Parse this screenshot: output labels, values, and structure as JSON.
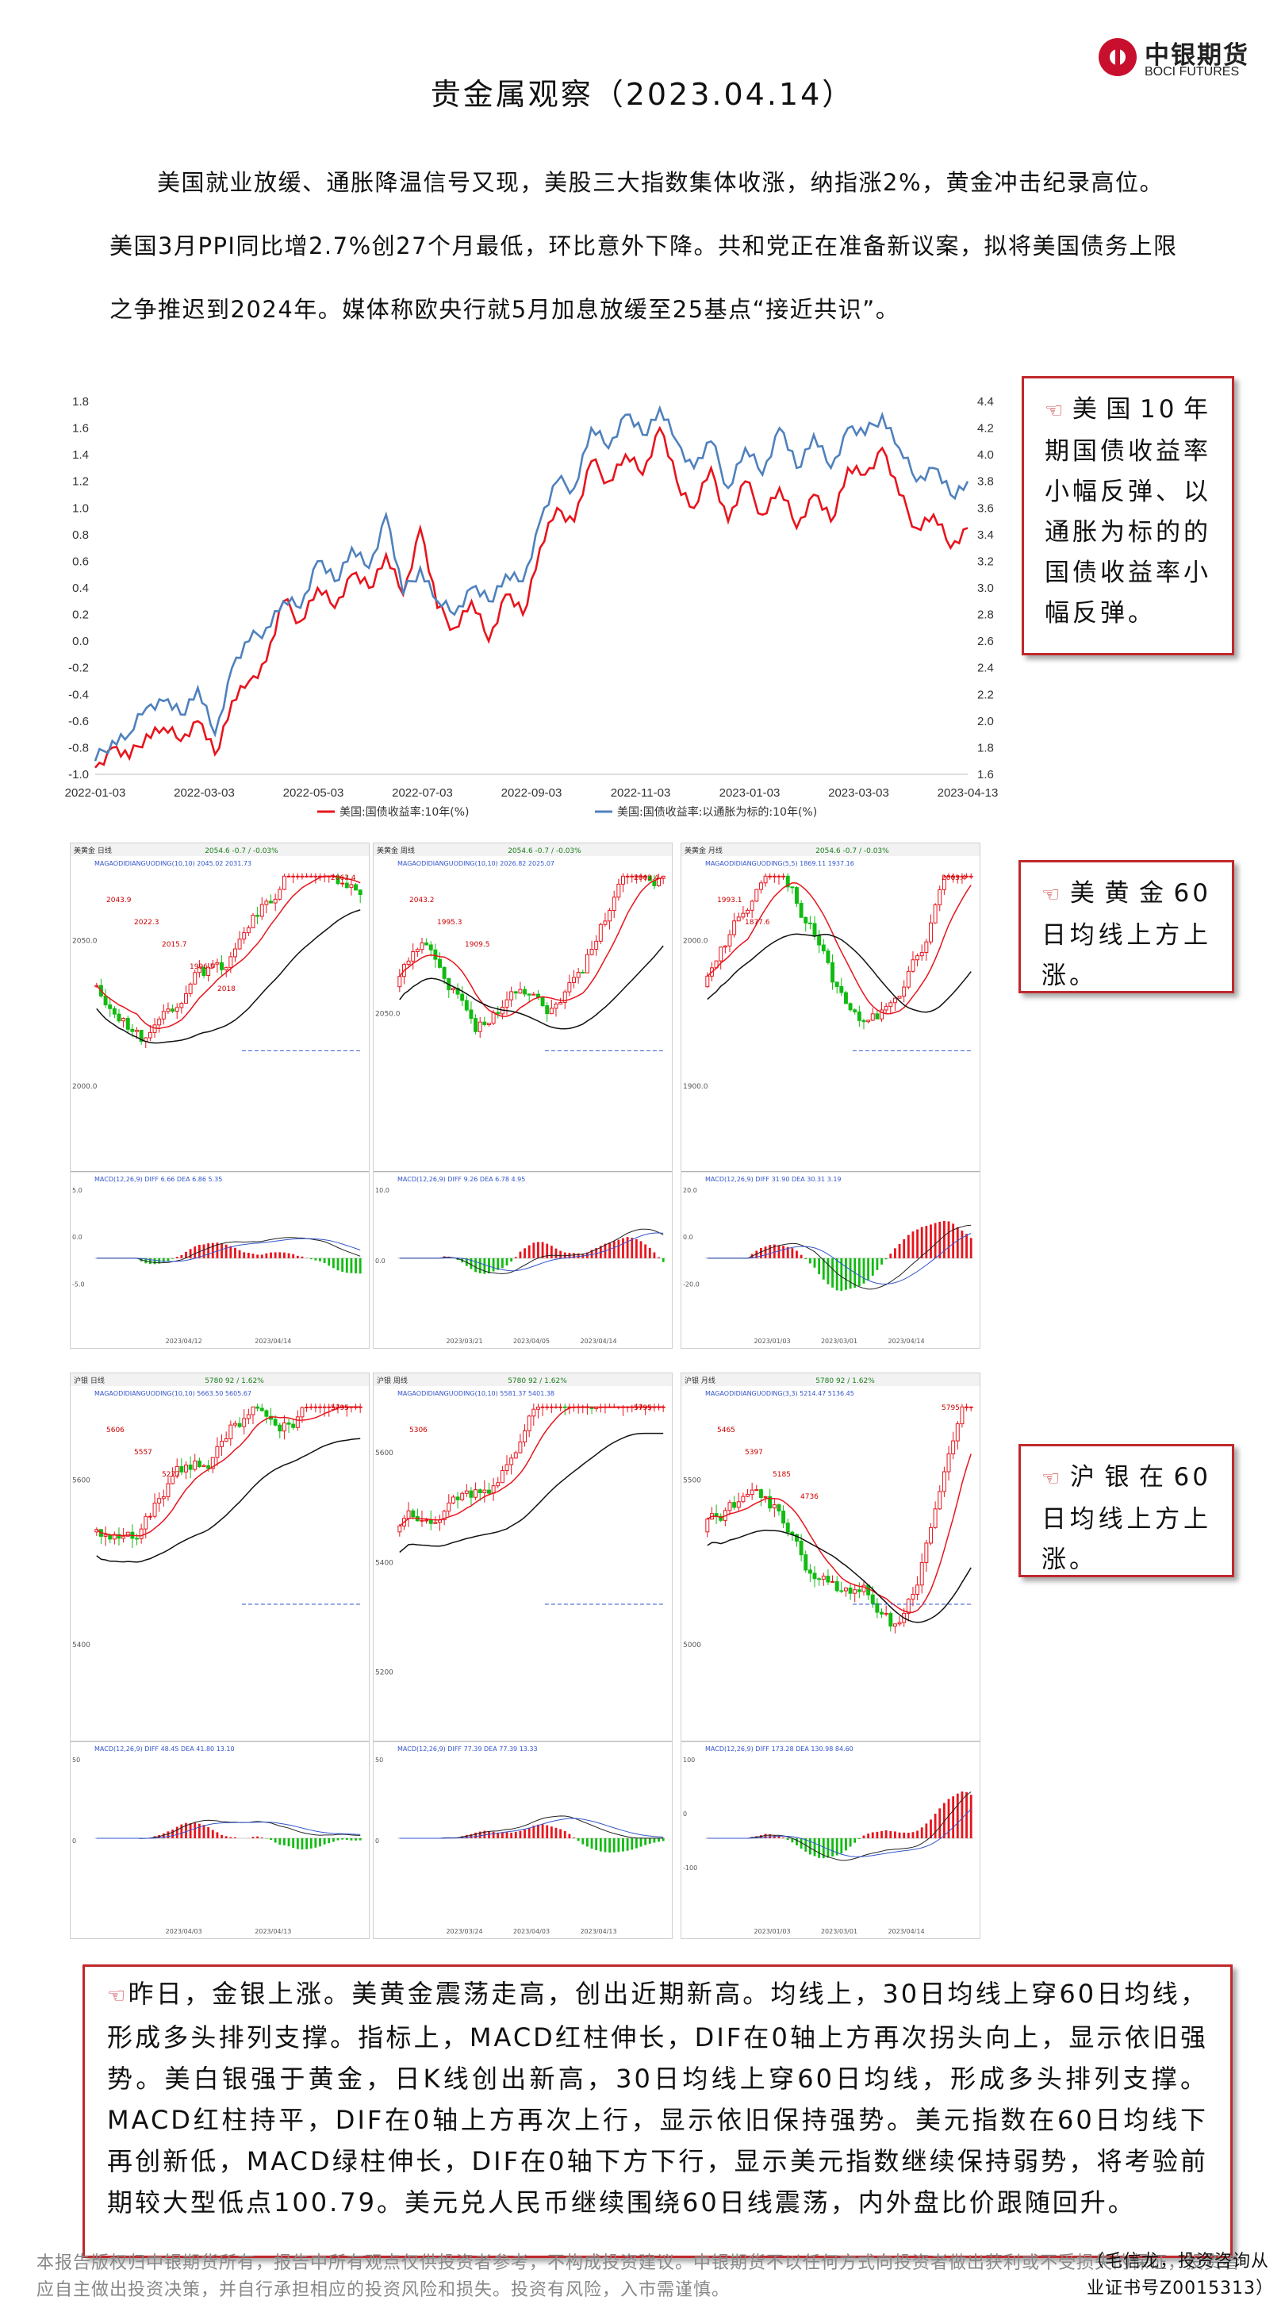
{
  "header": {
    "logo_cn": "中银期货",
    "logo_en": "BOCI FUTURES",
    "title": "贵金属观察（2023.04.14）"
  },
  "intro": {
    "line1": "美国就业放缓、通胀降温信号又现，美股三大指数集体收涨，纳指涨2%，黄金冲击纪录高位。",
    "line2": "美国3月PPI同比增2.7%创27个月最低，环比意外下降。共和党正在准备新议案，拟将美国债务上限",
    "line3": "之争推迟到2024年。媒体称欧央行就5月加息放缓至25基点“接近共识”。"
  },
  "callouts": {
    "yield": "美国10年期国债收益率小幅反弹、以通胀为标的的国债收益率小幅反弹。",
    "gold": "美黄金60日均线上方上涨。",
    "silver": "沪银在60日均线上方上涨。"
  },
  "chart_data": [
    {
      "type": "line",
      "title": "",
      "x_ticks": [
        "2022-01-03",
        "2022-03-03",
        "2022-05-03",
        "2022-07-03",
        "2022-09-03",
        "2022-11-03",
        "2023-01-03",
        "2023-03-03",
        "2023-04-13"
      ],
      "left_axis": {
        "ylim": [
          -1.0,
          1.8
        ],
        "ticks": [
          "1.8",
          "1.6",
          "1.4",
          "1.2",
          "1.0",
          "0.8",
          "0.6",
          "0.4",
          "0.2",
          "0.0",
          "-0.2",
          "-0.4",
          "-0.6",
          "-0.8",
          "-1.0"
        ]
      },
      "right_axis": {
        "ylim": [
          1.6,
          4.4
        ],
        "ticks": [
          "4.4",
          "4.2",
          "4.0",
          "3.8",
          "3.6",
          "3.4",
          "3.2",
          "3.0",
          "2.8",
          "2.6",
          "2.4",
          "2.2",
          "2.0",
          "1.8",
          "1.6"
        ]
      },
      "series": [
        {
          "name": "美国:国债收益率:10年(%)",
          "axis": "right",
          "color": "#e8141c",
          "values": [
            1.65,
            1.8,
            1.72,
            1.9,
            1.95,
            1.85,
            2.0,
            1.75,
            2.15,
            2.3,
            2.45,
            2.9,
            2.75,
            3.0,
            2.85,
            3.1,
            3.0,
            3.25,
            2.95,
            3.45,
            2.85,
            2.7,
            2.9,
            2.6,
            2.95,
            2.8,
            3.3,
            3.6,
            3.5,
            3.95,
            3.8,
            4.0,
            3.85,
            4.2,
            3.8,
            3.6,
            3.9,
            3.5,
            3.8,
            3.55,
            3.75,
            3.45,
            3.7,
            3.5,
            3.9,
            3.85,
            4.05,
            3.7,
            3.45,
            3.55,
            3.3,
            3.45
          ]
        },
        {
          "name": "美国:国债收益率:以通胀为标的:10年(%)",
          "axis": "left",
          "color": "#4f81bd",
          "values": [
            -0.9,
            -0.75,
            -0.7,
            -0.5,
            -0.45,
            -0.55,
            -0.35,
            -0.7,
            -0.2,
            0.0,
            0.1,
            0.3,
            0.25,
            0.6,
            0.45,
            0.7,
            0.55,
            0.95,
            0.35,
            0.55,
            0.3,
            0.2,
            0.4,
            0.3,
            0.5,
            0.45,
            0.9,
            1.2,
            1.15,
            1.6,
            1.45,
            1.7,
            1.55,
            1.75,
            1.5,
            1.3,
            1.5,
            1.15,
            1.45,
            1.25,
            1.6,
            1.3,
            1.55,
            1.3,
            1.6,
            1.55,
            1.7,
            1.45,
            1.2,
            1.3,
            1.1,
            1.2
          ]
        }
      ]
    }
  ],
  "panels": {
    "gold": [
      {
        "name": "美黄金 日线",
        "info": "2054.6  -0.7 / -0.03%",
        "ma": "MAGAODIDIANGUODING(10,10)  2045.02  2031.73",
        "high": "2063.4",
        "levels": [
          "2043.9",
          "2022.3",
          "2015.7",
          "1996.5",
          "2018"
        ],
        "macd": "MACD(12,26,9)  DIFF 6.66  DEA 6.86  5.35",
        "dates": [
          "2023/04/12",
          "2023/04/14"
        ],
        "y_ticks": [
          "2050.0",
          "2000.0"
        ],
        "macd_ticks": [
          "5.0",
          "0.0",
          "-5.0"
        ]
      },
      {
        "name": "美黄金 周线",
        "info": "2054.6  -0.7 / -0.03%",
        "ma": "MAGAODIDIANGUODING(10,10)  2026.82  2025.07",
        "high": "2063.4",
        "levels": [
          "2043.2",
          "1995.3",
          "1909.5"
        ],
        "macd": "MACD(12,26,9)  DIFF 9.26  DEA 6.78  4.95",
        "dates": [
          "2023/03/21",
          "2023/04/05",
          "2023/04/14"
        ],
        "y_ticks": [
          "2050.0"
        ],
        "macd_ticks": [
          "10.0",
          "0.0"
        ]
      },
      {
        "name": "美黄金 月线",
        "info": "2054.6  -0.7 / -0.03%",
        "ma": "MAGAODIDIANGUODING(5,5)  1869.11  1937.16",
        "high": "2063.4",
        "levels": [
          "1993.1",
          "1877.6"
        ],
        "macd": "MACD(12,26,9)  DIFF 31.90  DEA 30.31  3.19",
        "dates": [
          "2023/01/03",
          "2023/03/01",
          "2023/04/14"
        ],
        "y_ticks": [
          "2000.0",
          "1900.0"
        ],
        "macd_ticks": [
          "20.0",
          "0.0",
          "-20.0"
        ]
      }
    ],
    "silver": [
      {
        "name": "沪银 日线",
        "info": "5780  92 / 1.62%",
        "ma": "MAGAODIDIANGUODING(10,10)  5663.50  5605.67",
        "high": "5795",
        "levels": [
          "5606",
          "5557",
          "5277"
        ],
        "macd": "MACD(12,26,9)  DIFF 48.45  DEA 41.80  13.10",
        "dates": [
          "2023/04/03",
          "2023/04/13"
        ],
        "y_ticks": [
          "5600",
          "5400"
        ],
        "macd_ticks": [
          "50",
          "0"
        ]
      },
      {
        "name": "沪银 周线",
        "info": "5780  92 / 1.62%",
        "ma": "MAGAODIDIANGUODING(10,10)  5581.37  5401.38",
        "high": "5795",
        "levels": [
          "5306"
        ],
        "macd": "MACD(12,26,9)  DIFF 77.39  DEA 77.39  13.33",
        "dates": [
          "2023/03/24",
          "2023/04/03",
          "2023/04/13"
        ],
        "y_ticks": [
          "5600",
          "5400",
          "5200"
        ],
        "macd_ticks": [
          "50",
          "0"
        ]
      },
      {
        "name": "沪银 月线",
        "info": "5780  92 / 1.62%",
        "ma": "MAGAODIDIANGUODING(3,3)  5214.47  5136.45",
        "high": "5795",
        "levels": [
          "5465",
          "5397",
          "5185",
          "4736"
        ],
        "macd": "MACD(12,26,9)  DIFF 173.28  DEA 130.98  84.60",
        "dates": [
          "2023/01/03",
          "2023/03/01",
          "2023/04/14"
        ],
        "y_ticks": [
          "5500",
          "5000"
        ],
        "macd_ticks": [
          "100",
          "0",
          "-100"
        ]
      }
    ]
  },
  "summary": "昨日，金银上涨。美黄金震荡走高，创出近期新高。均线上，30日均线上穿60日均线，形成多头排列支撑。指标上，MACD红柱伸长，DIF在0轴上方再次拐头向上，显示依旧强势。美白银强于黄金，日K线创出新高，30日均线上穿60日均线，形成多头排列支撑。MACD红柱持平，DIF在0轴上方再次上行，显示依旧保持强势。美元指数在60日均线下再创新低，MACD绿柱伸长，DIF在0轴下方下行，显示美元指数继续保持弱势，将考验前期较大型低点100.79。美元兑人民币继续围绕60日线震荡，内外盘比价跟随回升。",
  "footer": {
    "disclaimer": "本报告版权归中银期货所有，报告中所有观点仅供投资者参考，不构成投资建议。中银期货不以任何方式向投资者做出获利或不受损失的保证，投资者应自主做出投资决策，并自行承担相应的投资风险和损失。投资有风险，入市需谨慎。",
    "advisor1": "（毛信龙，投资咨询从",
    "advisor2": "业证书号Z0015313）"
  }
}
